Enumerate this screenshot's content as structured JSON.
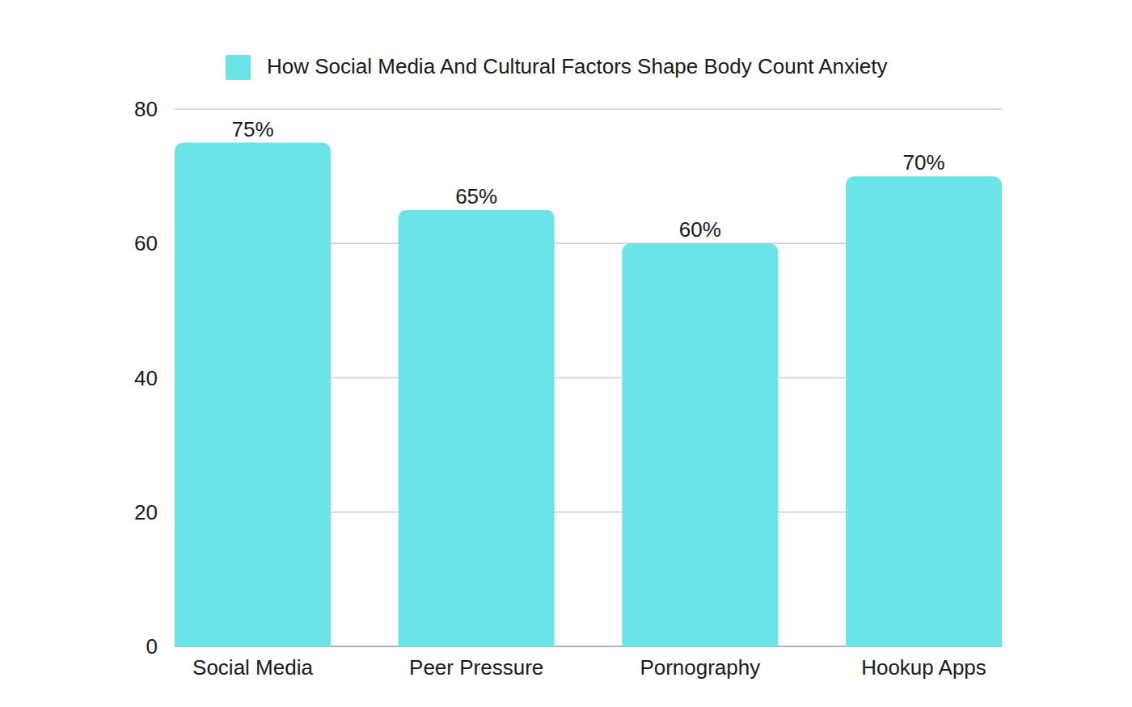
{
  "chart_data": {
    "type": "bar",
    "categories": [
      "Social Media",
      "Peer Pressure",
      "Pornography",
      "Hookup Apps"
    ],
    "series": [
      {
        "name": "How Social Media And Cultural Factors Shape Body Count Anxiety",
        "color": "#6ae4e7",
        "values": [
          75,
          65,
          60,
          70
        ],
        "value_labels": [
          "75%",
          "65%",
          "60%",
          "70%"
        ]
      }
    ],
    "ylim": [
      0,
      80
    ],
    "yticks": [
      0,
      20,
      40,
      60,
      80
    ],
    "grid": true,
    "legend": "top",
    "data_labels": true
  }
}
